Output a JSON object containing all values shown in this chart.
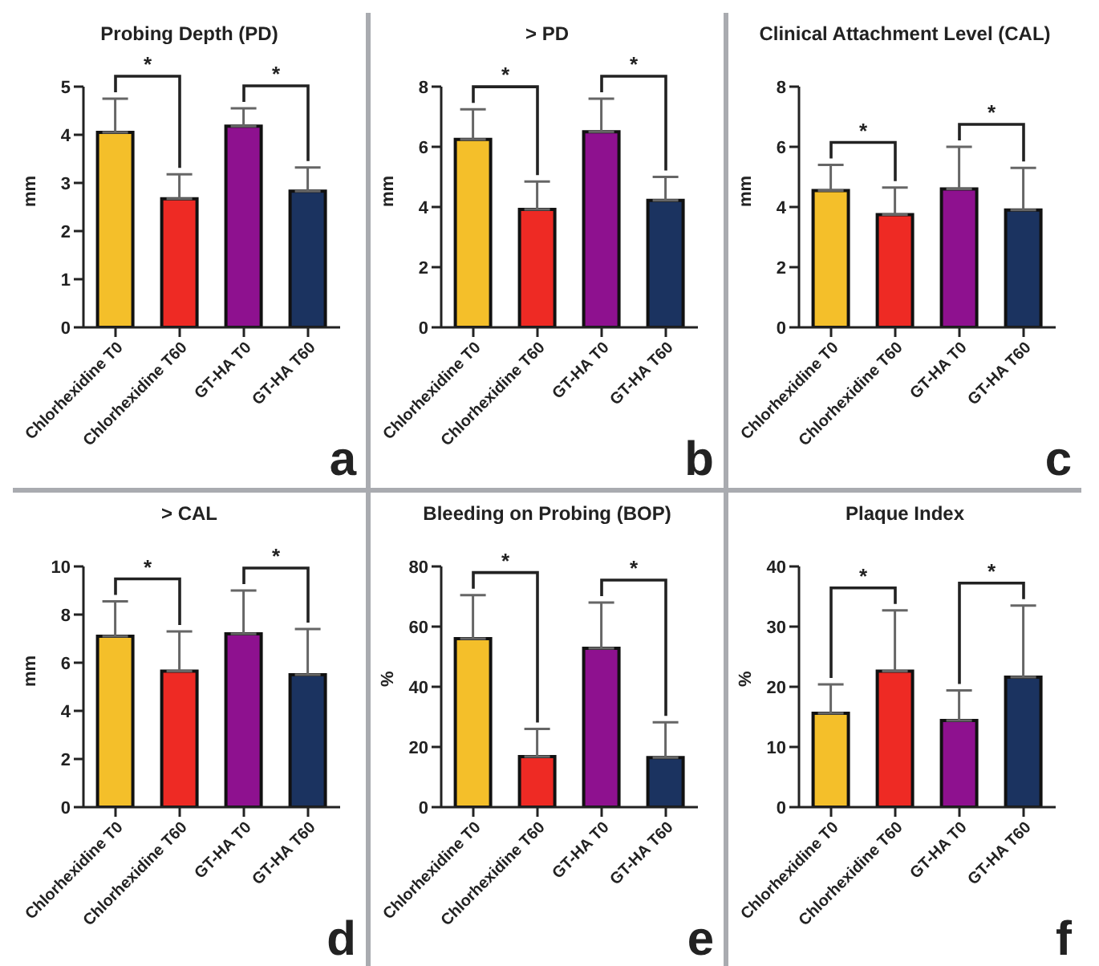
{
  "chart_data": [
    {
      "type": "bar",
      "title": "Probing Depth (PD)",
      "ylabel": "mm",
      "categories": [
        "Chlorhexidine T0",
        "Chlorhexidine T60",
        "GT-HA T0",
        "GT-HA T60"
      ],
      "values": [
        4.05,
        2.67,
        4.18,
        2.83
      ],
      "colors": [
        "#f4bf2a",
        "#ee2a24",
        "#8e118f",
        "#1b3360"
      ],
      "errors": [
        [
          4.05,
          4.75
        ],
        [
          2.67,
          3.18
        ],
        [
          4.18,
          4.55
        ],
        [
          2.83,
          3.32
        ]
      ],
      "ylim": [
        0,
        5
      ],
      "yticks": [
        0,
        1,
        2,
        3,
        4,
        5
      ],
      "annotations": [
        "*",
        "*",
        "a"
      ]
    },
    {
      "type": "bar",
      "title": "> PD",
      "ylabel": "mm",
      "categories": [
        "Chlorhexidine T0",
        "Chlorhexidine T60",
        "GT-HA T0",
        "GT-HA T60"
      ],
      "values": [
        6.25,
        3.92,
        6.5,
        4.22
      ],
      "colors": [
        "#f4bf2a",
        "#ee2a24",
        "#8e118f",
        "#1b3360"
      ],
      "errors": [
        [
          6.25,
          7.25
        ],
        [
          3.92,
          4.85
        ],
        [
          6.5,
          7.6
        ],
        [
          4.22,
          5.0
        ]
      ],
      "ylim": [
        0,
        8
      ],
      "yticks": [
        0,
        2,
        4,
        6,
        8
      ],
      "annotations": [
        "*",
        "*",
        "b"
      ]
    },
    {
      "type": "bar",
      "title": "Clinical Attachment Level (CAL)",
      "ylabel": "mm",
      "categories": [
        "Chlorhexidine T0",
        "Chlorhexidine T60",
        "GT-HA T0",
        "GT-HA T60"
      ],
      "values": [
        4.55,
        3.75,
        4.6,
        3.9
      ],
      "colors": [
        "#f4bf2a",
        "#ee2a24",
        "#8e118f",
        "#1b3360"
      ],
      "errors": [
        [
          4.55,
          5.4
        ],
        [
          3.75,
          4.65
        ],
        [
          4.6,
          6.0
        ],
        [
          3.9,
          5.3
        ]
      ],
      "ylim": [
        0,
        8
      ],
      "yticks": [
        0,
        2,
        4,
        6,
        8
      ],
      "annotations": [
        "*",
        "*",
        "c"
      ]
    },
    {
      "type": "bar",
      "title": "> CAL",
      "ylabel": "mm",
      "categories": [
        "Chlorhexidine T0",
        "Chlorhexidine T60",
        "GT-HA T0",
        "GT-HA T60"
      ],
      "values": [
        7.1,
        5.65,
        7.2,
        5.5
      ],
      "colors": [
        "#f4bf2a",
        "#ee2a24",
        "#8e118f",
        "#1b3360"
      ],
      "errors": [
        [
          7.1,
          8.55
        ],
        [
          5.65,
          7.3
        ],
        [
          7.2,
          9.0
        ],
        [
          5.5,
          7.4
        ]
      ],
      "ylim": [
        0,
        10
      ],
      "yticks": [
        0,
        2,
        4,
        6,
        8,
        10
      ],
      "annotations": [
        "*",
        "*",
        "d"
      ]
    },
    {
      "type": "bar",
      "title": "Bleeding on Probing (BOP)",
      "ylabel": "%",
      "categories": [
        "Chlorhexidine T0",
        "Chlorhexidine T60",
        "GT-HA T0",
        "GT-HA T60"
      ],
      "values": [
        56,
        16.8,
        52.8,
        16.5
      ],
      "colors": [
        "#f4bf2a",
        "#ee2a24",
        "#8e118f",
        "#1b3360"
      ],
      "errors": [
        [
          56,
          70.5
        ],
        [
          16.8,
          26
        ],
        [
          52.8,
          68
        ],
        [
          16.5,
          28.2
        ]
      ],
      "ylim": [
        0,
        80
      ],
      "yticks": [
        0,
        20,
        40,
        60,
        80
      ],
      "annotations": [
        "*",
        "*",
        "e"
      ]
    },
    {
      "type": "bar",
      "title": "Plaque Index",
      "ylabel": "%",
      "categories": [
        "Chlorhexidine T0",
        "Chlorhexidine T60",
        "GT-HA T0",
        "GT-HA T60"
      ],
      "values": [
        15.6,
        22.6,
        14.4,
        21.6
      ],
      "colors": [
        "#f4bf2a",
        "#ee2a24",
        "#8e118f",
        "#1b3360"
      ],
      "errors": [
        [
          15.6,
          20.4
        ],
        [
          22.6,
          32.7
        ],
        [
          14.4,
          19.4
        ],
        [
          21.6,
          33.5
        ]
      ],
      "ylim": [
        0,
        40
      ],
      "yticks": [
        0,
        10,
        20,
        30,
        40
      ],
      "annotations": [
        "*",
        "*",
        "f"
      ]
    }
  ]
}
